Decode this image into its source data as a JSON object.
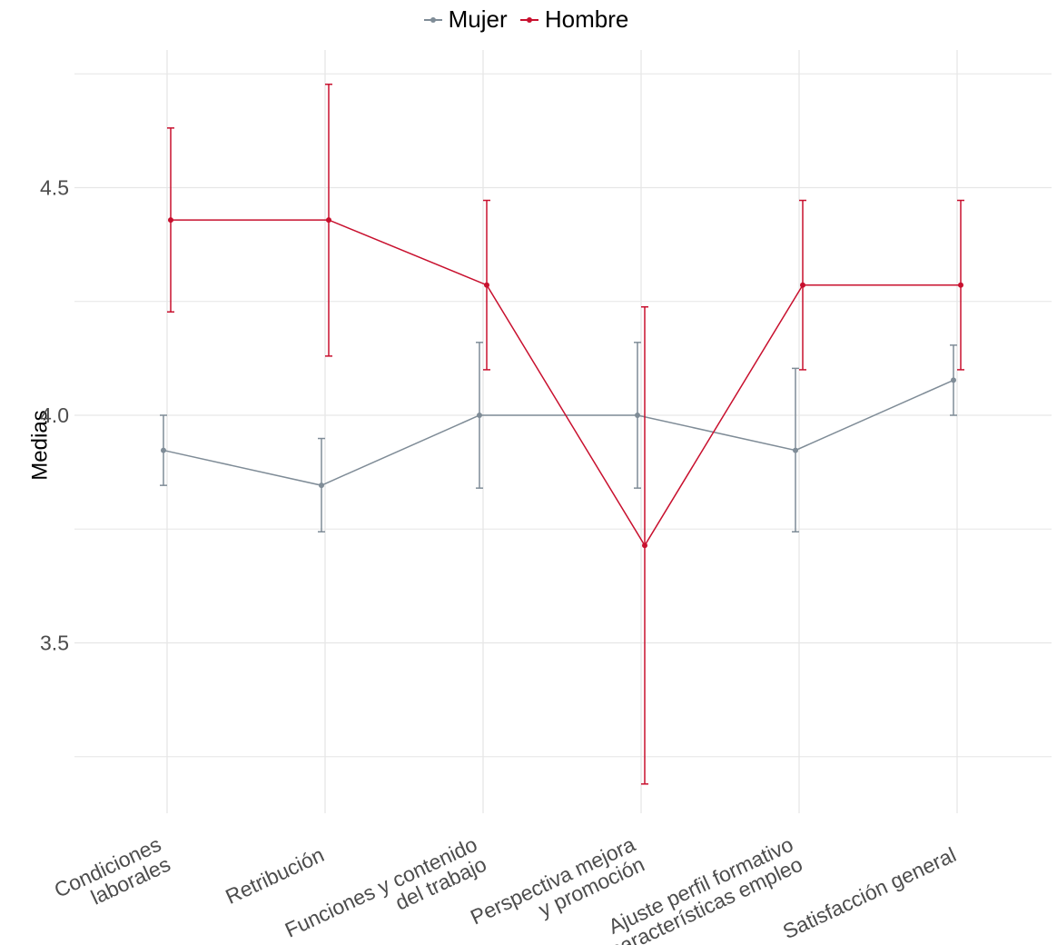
{
  "colors": {
    "Mujer": "#7f8c97",
    "Hombre": "#c8102e",
    "grid": "#e6e6e6",
    "tick_text": "#4d4d4d"
  },
  "chart_data": {
    "type": "line",
    "title": "",
    "xlabel": "",
    "ylabel": "Medias",
    "ylim": [
      3.2,
      4.75
    ],
    "yticks": [
      3.5,
      4.0,
      4.5
    ],
    "ytick_labels": [
      "3.5",
      "4.0",
      "4.5"
    ],
    "grid": true,
    "legend_position": "top",
    "categories": [
      [
        "Condiciones",
        "laborales"
      ],
      [
        "Retribución"
      ],
      [
        "Funciones y contenido",
        "del trabajo"
      ],
      [
        "Perspectiva mejora",
        "y promoción"
      ],
      [
        "Ajuste perfil formativo",
        "y características empleo"
      ],
      [
        "Satisfacción general"
      ]
    ],
    "series": [
      {
        "name": "Mujer",
        "values": [
          3.923,
          3.846,
          4.0,
          4.0,
          3.923,
          4.077
        ],
        "lower": [
          3.846,
          3.744,
          3.84,
          3.84,
          3.744,
          4.0
        ],
        "upper": [
          4.0,
          3.949,
          4.16,
          4.16,
          4.103,
          4.154
        ]
      },
      {
        "name": "Hombre",
        "values": [
          4.429,
          4.429,
          4.286,
          3.714,
          4.286,
          4.286
        ],
        "lower": [
          4.227,
          4.13,
          4.1,
          3.19,
          4.1,
          4.1
        ],
        "upper": [
          4.631,
          4.727,
          4.472,
          4.238,
          4.472,
          4.472
        ]
      }
    ]
  }
}
